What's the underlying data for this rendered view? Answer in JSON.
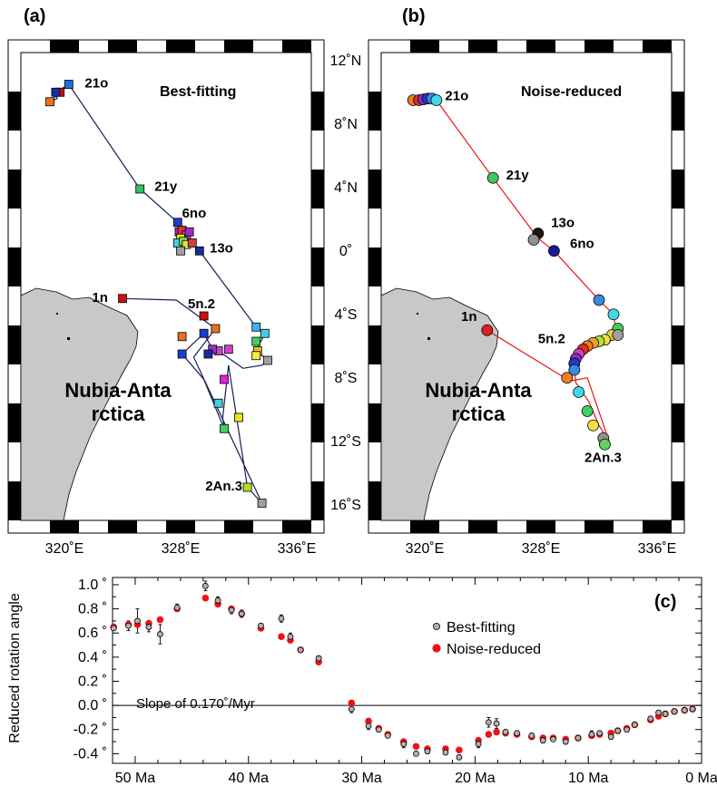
{
  "chart_data": [
    {
      "panel": "(a)",
      "type": "scatter",
      "title": "Best-fitting",
      "region_label": "Nubia-Antarctica",
      "lon_ticks": [
        "320˚E",
        "328˚E",
        "336˚E"
      ],
      "lat_ticks": [
        "12˚N",
        "8˚N",
        "4˚N",
        "0˚",
        "4˚S",
        "8˚S",
        "12˚S",
        "16˚S"
      ],
      "xlim": [
        317,
        337
      ],
      "ylim": [
        -17,
        12.5
      ],
      "path": [
        [
          320.3,
          10.5
        ],
        [
          319.7,
          10.0
        ],
        [
          319.0,
          9.4
        ],
        [
          319.5,
          9.6
        ],
        [
          319.4,
          10.0
        ],
        [
          320.3,
          10.5
        ],
        [
          325.2,
          3.9
        ],
        [
          327.8,
          1.8
        ],
        [
          327.9,
          1.2
        ],
        [
          328.4,
          1.0
        ],
        [
          328.8,
          0.5
        ],
        [
          329.3,
          0.0
        ],
        [
          333.2,
          -4.8
        ],
        [
          333.8,
          -5.2
        ],
        [
          333.2,
          -6.3
        ],
        [
          334.0,
          -6.9
        ],
        [
          333.6,
          -7.2
        ],
        [
          332.3,
          -7.4
        ],
        [
          330.6,
          -6.3
        ],
        [
          330.2,
          -6.2
        ],
        [
          329.6,
          -5.2
        ],
        [
          328.1,
          -6.5
        ],
        [
          329.6,
          -8.1
        ],
        [
          331.0,
          -11.2
        ],
        [
          330.9,
          -10.5
        ],
        [
          331.3,
          -7.2
        ],
        [
          332.6,
          -14.9
        ],
        [
          333.6,
          -15.9
        ],
        [
          328.9,
          -6.7
        ],
        [
          330.4,
          -4.9
        ],
        [
          327.7,
          -3.1
        ],
        [
          324.0,
          -3.0
        ]
      ],
      "markers": [
        {
          "lon": 320.3,
          "lat": 10.5,
          "color": "#1e6ed6"
        },
        {
          "lon": 319.7,
          "lat": 10.0,
          "color": "#cc1010"
        },
        {
          "lon": 319.4,
          "lat": 10.0,
          "color": "#1a2aa0"
        },
        {
          "lon": 319.0,
          "lat": 9.4,
          "color": "#e87020"
        },
        {
          "lon": 325.2,
          "lat": 3.9,
          "color": "#30c060"
        },
        {
          "lon": 327.8,
          "lat": 1.8,
          "color": "#1a3cd0"
        },
        {
          "lon": 327.9,
          "lat": 1.2,
          "color": "#9a30c0"
        },
        {
          "lon": 328.1,
          "lat": 1.3,
          "color": "#e83030"
        },
        {
          "lon": 328.4,
          "lat": 1.0,
          "color": "#d040d0"
        },
        {
          "lon": 328.6,
          "lat": 1.2,
          "color": "#9a30c0"
        },
        {
          "lon": 328.0,
          "lat": 0.8,
          "color": "#f0e020"
        },
        {
          "lon": 327.8,
          "lat": 0.5,
          "color": "#40d0e0"
        },
        {
          "lon": 328.2,
          "lat": 0.6,
          "color": "#80e040"
        },
        {
          "lon": 328.4,
          "lat": 0.4,
          "color": "#e0e040"
        },
        {
          "lon": 328.8,
          "lat": 0.5,
          "color": "#d04040"
        },
        {
          "lon": 328.0,
          "lat": 0.0,
          "color": "#a0a0a0"
        },
        {
          "lon": 329.3,
          "lat": 0.0,
          "color": "#1a2aa0"
        },
        {
          "lon": 333.2,
          "lat": -4.8,
          "color": "#40b0f0"
        },
        {
          "lon": 333.8,
          "lat": -5.2,
          "color": "#40d0e0"
        },
        {
          "lon": 333.2,
          "lat": -5.7,
          "color": "#40d060"
        },
        {
          "lon": 333.3,
          "lat": -6.3,
          "color": "#e8c020"
        },
        {
          "lon": 333.2,
          "lat": -6.6,
          "color": "#f0f040"
        },
        {
          "lon": 334.0,
          "lat": -6.9,
          "color": "#a0a0a0"
        },
        {
          "lon": 330.6,
          "lat": -6.3,
          "color": "#d040d0"
        },
        {
          "lon": 330.2,
          "lat": -6.2,
          "color": "#9a30c0"
        },
        {
          "lon": 329.9,
          "lat": -6.5,
          "color": "#1a2aa0"
        },
        {
          "lon": 329.6,
          "lat": -5.2,
          "color": "#1a3cd0"
        },
        {
          "lon": 330.4,
          "lat": -4.9,
          "color": "#e87020"
        },
        {
          "lon": 329.6,
          "lat": -4.1,
          "color": "#cc1010"
        },
        {
          "lon": 328.1,
          "lat": -5.4,
          "color": "#e87020"
        },
        {
          "lon": 328.1,
          "lat": -6.5,
          "color": "#1a3cd0"
        },
        {
          "lon": 331.0,
          "lat": -8.1,
          "color": "#e020e0"
        },
        {
          "lon": 331.3,
          "lat": -6.2,
          "color": "#d040d0"
        },
        {
          "lon": 330.6,
          "lat": -9.6,
          "color": "#40d0e0"
        },
        {
          "lon": 332.0,
          "lat": -10.5,
          "color": "#f0e020"
        },
        {
          "lon": 331.0,
          "lat": -11.2,
          "color": "#40d060"
        },
        {
          "lon": 332.6,
          "lat": -14.9,
          "color": "#b0e020"
        },
        {
          "lon": 333.6,
          "lat": -15.9,
          "color": "#a0a0a0"
        },
        {
          "lon": 324.0,
          "lat": -3.0,
          "color": "#cc1010"
        }
      ],
      "labels": [
        {
          "text": "21o",
          "lon": 321.4,
          "lat": 10.3
        },
        {
          "text": "21y",
          "lon": 326.2,
          "lat": 3.8
        },
        {
          "text": "6no",
          "lon": 328.1,
          "lat": 2.1
        },
        {
          "text": "13o",
          "lon": 330.0,
          "lat": -0.1
        },
        {
          "text": "1n",
          "lon": 321.9,
          "lat": -3.2
        },
        {
          "text": "5n.2",
          "lon": 328.5,
          "lat": -3.6
        },
        {
          "text": "2An.3",
          "lon": 329.7,
          "lat": -15.1
        }
      ]
    },
    {
      "panel": "(b)",
      "type": "scatter",
      "title": "Noise-reduced",
      "region_label": "Nubia-Antarctica",
      "lon_ticks": [
        "320˚E",
        "328˚E",
        "336˚E"
      ],
      "xlim": [
        317,
        337
      ],
      "ylim": [
        -17,
        12.5
      ],
      "path": [
        [
          319.2,
          9.5
        ],
        [
          320.8,
          9.5
        ],
        [
          324.7,
          4.6
        ],
        [
          327.8,
          0.8
        ],
        [
          328.9,
          0.0
        ],
        [
          332.0,
          -3.1
        ],
        [
          333.0,
          -4.0
        ],
        [
          333.2,
          -5.2
        ],
        [
          332.6,
          -5.9
        ],
        [
          331.9,
          -5.9
        ],
        [
          330.7,
          -6.4
        ],
        [
          330.3,
          -7.2
        ],
        [
          330.4,
          -8.3
        ],
        [
          331.3,
          -9.5
        ],
        [
          332.0,
          -11.0
        ],
        [
          332.7,
          -12.0
        ],
        [
          331.2,
          -8.0
        ],
        [
          330.0,
          -8.2
        ],
        [
          324.3,
          -5.0
        ]
      ],
      "markers": [
        {
          "lon": 319.2,
          "lat": 9.5,
          "color": "#f07c20"
        },
        {
          "lon": 319.6,
          "lat": 9.5,
          "color": "#e03020"
        },
        {
          "lon": 319.9,
          "lat": 9.55,
          "color": "#8030c0"
        },
        {
          "lon": 320.2,
          "lat": 9.6,
          "color": "#2a36c8"
        },
        {
          "lon": 320.5,
          "lat": 9.6,
          "color": "#3a8ae0"
        },
        {
          "lon": 320.8,
          "lat": 9.5,
          "color": "#40d8e8"
        },
        {
          "lon": 324.7,
          "lat": 4.6,
          "color": "#40c860"
        },
        {
          "lon": 327.8,
          "lat": 1.1,
          "color": "#1a1a1a"
        },
        {
          "lon": 327.5,
          "lat": 0.7,
          "color": "#909090"
        },
        {
          "lon": 328.9,
          "lat": 0.0,
          "color": "#1a1a90"
        },
        {
          "lon": 332.0,
          "lat": -3.1,
          "color": "#3a8ae0"
        },
        {
          "lon": 333.0,
          "lat": -4.0,
          "color": "#40d8e8"
        },
        {
          "lon": 333.3,
          "lat": -4.9,
          "color": "#40d060"
        },
        {
          "lon": 332.9,
          "lat": -5.3,
          "color": "#e8d040"
        },
        {
          "lon": 333.3,
          "lat": -5.3,
          "color": "#a0a0a0"
        },
        {
          "lon": 332.4,
          "lat": -5.6,
          "color": "#f0e040"
        },
        {
          "lon": 332.0,
          "lat": -5.7,
          "color": "#b0e040"
        },
        {
          "lon": 331.6,
          "lat": -5.8,
          "color": "#f0a030"
        },
        {
          "lon": 331.2,
          "lat": -6.0,
          "color": "#f07c20"
        },
        {
          "lon": 330.9,
          "lat": -6.2,
          "color": "#e03020"
        },
        {
          "lon": 330.6,
          "lat": -6.5,
          "color": "#d040c0"
        },
        {
          "lon": 330.4,
          "lat": -6.8,
          "color": "#8030c0"
        },
        {
          "lon": 330.3,
          "lat": -7.1,
          "color": "#2a36c8"
        },
        {
          "lon": 330.3,
          "lat": -7.5,
          "color": "#3a8ae0"
        },
        {
          "lon": 330.6,
          "lat": -8.9,
          "color": "#40d8e8"
        },
        {
          "lon": 331.2,
          "lat": -10.1,
          "color": "#40d060"
        },
        {
          "lon": 331.6,
          "lat": -11.0,
          "color": "#f0e040"
        },
        {
          "lon": 332.3,
          "lat": -11.8,
          "color": "#909090"
        },
        {
          "lon": 332.4,
          "lat": -12.2,
          "color": "#60d060"
        },
        {
          "lon": 329.8,
          "lat": -8.0,
          "color": "#f07c20"
        },
        {
          "lon": 324.3,
          "lat": -5.0,
          "color": "#e02020"
        }
      ],
      "labels": [
        {
          "text": "21o",
          "lon": 321.4,
          "lat": 9.5
        },
        {
          "text": "21y",
          "lon": 325.6,
          "lat": 4.5
        },
        {
          "text": "13o",
          "lon": 328.7,
          "lat": 1.5
        },
        {
          "text": "6no",
          "lon": 330.0,
          "lat": 0.2
        },
        {
          "text": "1n",
          "lon": 322.5,
          "lat": -4.4
        },
        {
          "text": "5n.2",
          "lon": 327.8,
          "lat": -5.8
        },
        {
          "text": "2An.3",
          "lon": 331.0,
          "lat": -13.3
        }
      ]
    },
    {
      "panel": "(c)",
      "type": "scatter",
      "xlabel": "",
      "ylabel": "Reduced rotation angle",
      "annotation": "Slope of 0.170˚/Myr",
      "xlim": [
        52,
        0
      ],
      "ylim": [
        -0.48,
        1.06
      ],
      "x_ticks": [
        "50 Ma",
        "40 Ma",
        "30 Ma",
        "20 Ma",
        "10 Ma",
        "0 Ma"
      ],
      "y_ticks": [
        "1.0 ˚",
        "0.8 ˚",
        "0.6 ˚",
        "0.4 ˚",
        "0.2 ˚",
        "0.0 ˚",
        "-0.2 ˚",
        "-0.4 ˚"
      ],
      "legend_position": "right",
      "series": [
        {
          "name": "Best-fitting",
          "color": "#b0b0b0",
          "points": [
            [
              51.9,
              0.64,
              0.02
            ],
            [
              50.6,
              0.66,
              0.04
            ],
            [
              49.8,
              0.7,
              0.1
            ],
            [
              48.8,
              0.65,
              0.04
            ],
            [
              47.8,
              0.59,
              0.08
            ],
            [
              46.3,
              0.81,
              0.03
            ],
            [
              43.8,
              0.99,
              0.04
            ],
            [
              42.7,
              0.87,
              0.03
            ],
            [
              41.5,
              0.79,
              0.03
            ],
            [
              40.6,
              0.76,
              0.03
            ],
            [
              38.9,
              0.66,
              0.02
            ],
            [
              37.1,
              0.72,
              0.03
            ],
            [
              36.3,
              0.57,
              0.03
            ],
            [
              35.4,
              0.46,
              0.02
            ],
            [
              33.8,
              0.39,
              0.02
            ],
            [
              30.9,
              -0.03,
              0.03
            ],
            [
              29.4,
              -0.17,
              0.03
            ],
            [
              28.5,
              -0.2,
              0.02
            ],
            [
              27.7,
              -0.25,
              0.02
            ],
            [
              26.3,
              -0.32,
              0.03
            ],
            [
              25.2,
              -0.4,
              0.02
            ],
            [
              24.2,
              -0.38,
              0.02
            ],
            [
              22.6,
              -0.39,
              0.02
            ],
            [
              21.4,
              -0.43,
              0.02
            ],
            [
              19.7,
              -0.32,
              0.03
            ],
            [
              18.8,
              -0.14,
              0.04
            ],
            [
              18.1,
              -0.15,
              0.04
            ],
            [
              17.3,
              -0.22,
              0.02
            ],
            [
              16.3,
              -0.23,
              0.02
            ],
            [
              15.0,
              -0.25,
              0.02
            ],
            [
              14.0,
              -0.29,
              0.02
            ],
            [
              13.1,
              -0.28,
              0.02
            ],
            [
              12.0,
              -0.3,
              0.02
            ],
            [
              10.9,
              -0.27,
              0.02
            ],
            [
              9.7,
              -0.24,
              0.03
            ],
            [
              9.0,
              -0.23,
              0.02
            ],
            [
              8.0,
              -0.26,
              0.02
            ],
            [
              7.4,
              -0.21,
              0.02
            ],
            [
              6.6,
              -0.2,
              0.02
            ],
            [
              5.9,
              -0.16,
              0.02
            ],
            [
              4.5,
              -0.11,
              0.02
            ],
            [
              3.8,
              -0.06,
              0.02
            ],
            [
              3.2,
              -0.07,
              0.02
            ],
            [
              2.4,
              -0.05,
              0.02
            ],
            [
              1.5,
              -0.04,
              0.01
            ],
            [
              0.8,
              -0.03,
              0.01
            ]
          ]
        },
        {
          "name": "Noise-reduced",
          "color": "#ee1111",
          "points": [
            [
              51.9,
              0.65
            ],
            [
              50.6,
              0.67
            ],
            [
              49.8,
              0.67
            ],
            [
              48.8,
              0.68
            ],
            [
              47.8,
              0.71
            ],
            [
              46.3,
              0.8
            ],
            [
              43.8,
              0.89
            ],
            [
              42.7,
              0.84
            ],
            [
              41.5,
              0.8
            ],
            [
              40.6,
              0.76
            ],
            [
              38.9,
              0.64
            ],
            [
              37.1,
              0.57
            ],
            [
              36.3,
              0.54
            ],
            [
              35.4,
              0.46
            ],
            [
              33.8,
              0.36
            ],
            [
              30.9,
              0.02
            ],
            [
              29.4,
              -0.13
            ],
            [
              28.5,
              -0.19
            ],
            [
              27.7,
              -0.24
            ],
            [
              26.3,
              -0.3
            ],
            [
              25.2,
              -0.34
            ],
            [
              24.2,
              -0.36
            ],
            [
              22.6,
              -0.36
            ],
            [
              21.4,
              -0.37
            ],
            [
              19.7,
              -0.29
            ],
            [
              18.8,
              -0.24
            ],
            [
              18.1,
              -0.22
            ],
            [
              17.3,
              -0.23
            ],
            [
              16.3,
              -0.24
            ],
            [
              15.0,
              -0.26
            ],
            [
              14.0,
              -0.27
            ],
            [
              13.1,
              -0.27
            ],
            [
              12.0,
              -0.28
            ],
            [
              10.9,
              -0.27
            ],
            [
              9.7,
              -0.25
            ],
            [
              9.0,
              -0.24
            ],
            [
              8.0,
              -0.23
            ],
            [
              7.4,
              -0.21
            ],
            [
              6.6,
              -0.19
            ],
            [
              5.9,
              -0.16
            ],
            [
              4.5,
              -0.12
            ],
            [
              3.8,
              -0.09
            ],
            [
              3.2,
              -0.07
            ],
            [
              2.4,
              -0.05
            ],
            [
              1.5,
              -0.04
            ],
            [
              0.8,
              -0.03
            ]
          ]
        }
      ]
    }
  ]
}
